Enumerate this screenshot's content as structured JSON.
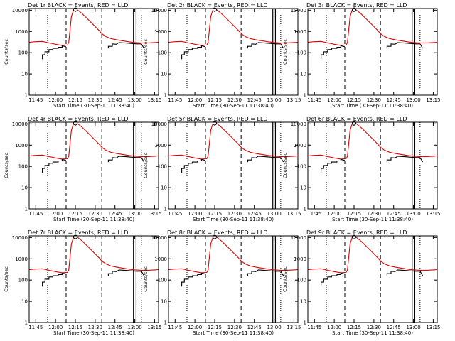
{
  "chart_data": {
    "type": "line",
    "yscale": "log",
    "ylim": [
      1,
      12000
    ],
    "xlim": [
      "11:40",
      "13:18"
    ],
    "y_ticks": [
      {
        "value": 1,
        "label": "1"
      },
      {
        "value": 10,
        "label": "10"
      },
      {
        "value": 100,
        "label": "100"
      },
      {
        "value": 1000,
        "label": "1000"
      },
      {
        "value": 10000,
        "label": "10000"
      }
    ],
    "x_ticks": [
      "11:45",
      "12:00",
      "12:15",
      "12:30",
      "12:45",
      "13:00",
      "13:15"
    ],
    "xlabel": "Start Time (30-Sep-11 11:38:40)",
    "ylabel": "Counts/sec",
    "colors": {
      "events": "#000000",
      "lld": "#e00000"
    },
    "vertical_markers": {
      "dotted": [
        "11:54",
        "13:05"
      ],
      "dashed": [
        "12:08",
        "12:35"
      ],
      "solid": [
        "12:59",
        "13:01"
      ]
    },
    "panels": [
      {
        "title": "Det 1r BLACK = Events, RED = LLD"
      },
      {
        "title": "Det 2r BLACK = Events, RED = LLD"
      },
      {
        "title": "Det 3r BLACK = Events, RED = LLD"
      },
      {
        "title": "Det 4r BLACK = Events, RED = LLD"
      },
      {
        "title": "Det 5r BLACK = Events, RED = LLD"
      },
      {
        "title": "Det 6r BLACK = Events, RED = LLD"
      },
      {
        "title": "Det 7r BLACK = Events, RED = LLD"
      },
      {
        "title": "Det 8r BLACK = Events, RED = LLD"
      },
      {
        "title": "Det 9r BLACK = Events, RED = LLD"
      }
    ],
    "series": [
      {
        "key": "lld",
        "x": [
          "11:40",
          "11:45",
          "11:50",
          "11:55",
          "12:00",
          "12:05",
          "12:09",
          "12:10",
          "12:12",
          "12:14",
          "12:16",
          "12:20",
          "12:25",
          "12:30",
          "12:33",
          "12:35",
          "12:38",
          "12:42",
          "12:46",
          "12:50",
          "12:55",
          "13:00",
          "13:05",
          "13:10",
          "13:15",
          "13:18"
        ],
        "y": [
          310,
          330,
          340,
          290,
          250,
          220,
          230,
          300,
          5000,
          12000,
          11000,
          7000,
          3500,
          1700,
          1100,
          800,
          580,
          460,
          410,
          370,
          330,
          300,
          290,
          290,
          300,
          310
        ]
      },
      {
        "key": "events",
        "x": [
          "11:50",
          "11:50",
          "11:52",
          "11:52",
          "11:55",
          "11:55",
          "11:58",
          "11:58",
          "12:02",
          "12:02",
          "12:05",
          "12:05",
          "12:08",
          null,
          "12:40",
          "12:40",
          "12:43",
          "12:43",
          "12:46",
          "12:48",
          "12:52",
          "12:55",
          "12:58",
          "13:02",
          "13:05",
          "13:07"
        ],
        "y": [
          50,
          80,
          80,
          110,
          110,
          140,
          140,
          160,
          160,
          180,
          180,
          210,
          190,
          null,
          160,
          200,
          200,
          260,
          250,
          300,
          290,
          280,
          270,
          260,
          260,
          160
        ]
      }
    ]
  }
}
